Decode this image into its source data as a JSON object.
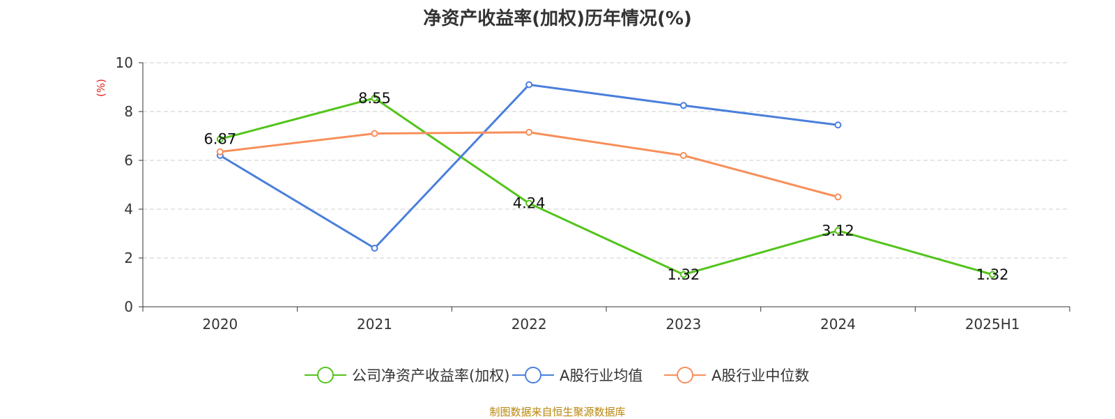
{
  "chart_data": {
    "type": "line",
    "title": "净资产收益率(加权)历年情况(%)",
    "ylabel": "(%)",
    "xlabel": "",
    "ylim": [
      0,
      10
    ],
    "yticks": [
      0,
      2,
      4,
      6,
      8,
      10
    ],
    "categories": [
      "2020",
      "2021",
      "2022",
      "2023",
      "2024",
      "2025H1"
    ],
    "series": [
      {
        "name": "公司净资产收益率(加权)",
        "color": "#52c41a",
        "values": [
          6.87,
          8.55,
          4.24,
          1.32,
          3.12,
          1.32
        ],
        "labels": [
          "6.87",
          "8.55",
          "4.24",
          "1.32",
          "3.12",
          "1.32"
        ]
      },
      {
        "name": "A股行业均值",
        "color": "#4a7fdc",
        "values": [
          6.2,
          2.4,
          9.1,
          8.25,
          7.45,
          null
        ]
      },
      {
        "name": "A股行业中位数",
        "color": "#f78f5a",
        "values": [
          6.35,
          7.1,
          7.15,
          6.2,
          4.5,
          null
        ]
      }
    ],
    "grid": true,
    "legend_position": "bottom"
  },
  "source": "制图数据来自恒生聚源数据库",
  "colors": {
    "axis": "#333333",
    "grid": "#cccccc",
    "unit": "#e02020"
  }
}
